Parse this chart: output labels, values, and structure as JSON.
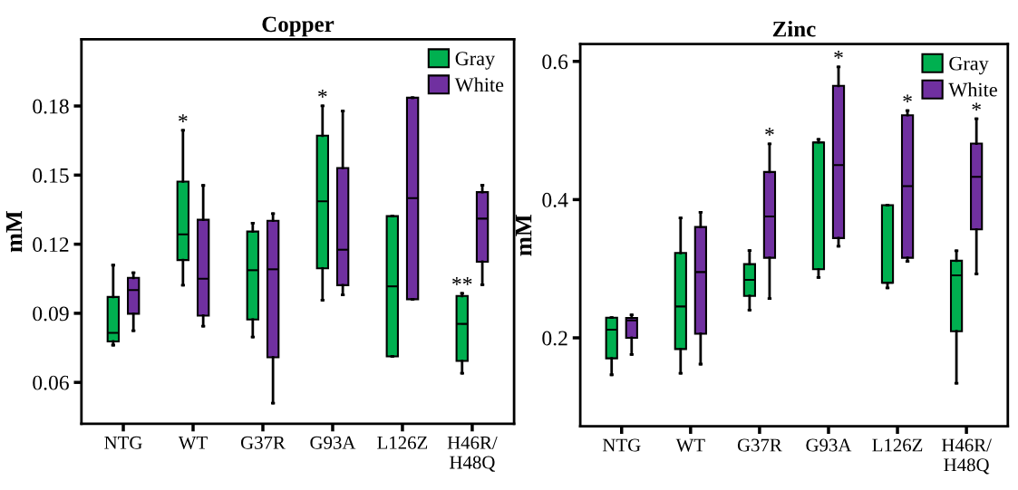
{
  "chart_data": [
    {
      "type": "box",
      "title": "Copper",
      "ylabel": "mM",
      "categories": [
        "NTG",
        "WT",
        "G37R",
        "G93A",
        "L126Z",
        "H46R/\nH48Q"
      ],
      "ylim": [
        0.042,
        0.209
      ],
      "yticks": [
        0.06,
        0.09,
        0.12,
        0.15,
        0.18
      ],
      "legend": "top right",
      "grid": false,
      "series": [
        {
          "name": "Gray",
          "color": "#00b050",
          "value_labels": [
            null,
            "*",
            null,
            "*",
            null,
            "**"
          ],
          "boxes": [
            {
              "low": 0.0762,
              "q1": 0.0778,
              "median": 0.0815,
              "q3": 0.0971,
              "high": 0.1109
            },
            {
              "low": 0.1022,
              "q1": 0.1131,
              "median": 0.1243,
              "q3": 0.1472,
              "high": 0.1694
            },
            {
              "low": 0.0797,
              "q1": 0.0873,
              "median": 0.1087,
              "q3": 0.1255,
              "high": 0.1291
            },
            {
              "low": 0.0957,
              "q1": 0.1095,
              "median": 0.1386,
              "q3": 0.1671,
              "high": 0.1801
            },
            {
              "low": 0.0713,
              "q1": 0.0713,
              "median": 0.1017,
              "q3": 0.1322,
              "high": 0.1322
            },
            {
              "low": 0.064,
              "q1": 0.0693,
              "median": 0.0854,
              "q3": 0.0975,
              "high": 0.0987
            }
          ]
        },
        {
          "name": "White",
          "color": "#7030a0",
          "boxes": [
            {
              "low": 0.0824,
              "q1": 0.0898,
              "median": 0.1001,
              "q3": 0.1054,
              "high": 0.1076
            },
            {
              "low": 0.0844,
              "q1": 0.089,
              "median": 0.105,
              "q3": 0.1306,
              "high": 0.1455
            },
            {
              "low": 0.051,
              "q1": 0.0709,
              "median": 0.1091,
              "q3": 0.1302,
              "high": 0.1333
            },
            {
              "low": 0.098,
              "q1": 0.1022,
              "median": 0.1176,
              "q3": 0.1531,
              "high": 0.1778
            },
            {
              "low": 0.0961,
              "q1": 0.0961,
              "median": 0.14,
              "q3": 0.1836,
              "high": 0.1836
            },
            {
              "low": 0.1024,
              "q1": 0.1124,
              "median": 0.1311,
              "q3": 0.1426,
              "high": 0.1456
            }
          ]
        }
      ]
    },
    {
      "type": "box",
      "title": "Zinc",
      "ylabel": "mM",
      "categories": [
        "NTG",
        "WT",
        "G37R",
        "G93A",
        "L126Z",
        "H46R/\nH48Q"
      ],
      "ylim": [
        0.072,
        0.625
      ],
      "yticks": [
        0.2,
        0.4,
        0.6
      ],
      "legend": "top right",
      "grid": false,
      "series": [
        {
          "name": "Gray",
          "color": "#00b050",
          "boxes": [
            {
              "low": 0.1466,
              "q1": 0.1703,
              "median": 0.2118,
              "q3": 0.2292,
              "high": 0.2292
            },
            {
              "low": 0.1488,
              "q1": 0.1838,
              "median": 0.2454,
              "q3": 0.3228,
              "high": 0.3735
            },
            {
              "low": 0.2401,
              "q1": 0.2607,
              "median": 0.2839,
              "q3": 0.3066,
              "high": 0.3263
            },
            {
              "low": 0.2874,
              "q1": 0.2992,
              "median": 0.4828,
              "q3": 0.4828,
              "high": 0.4872
            },
            {
              "low": 0.2721,
              "q1": 0.2795,
              "median": 0.2795,
              "q3": 0.3919,
              "high": 0.3919
            },
            {
              "low": 0.1344,
              "q1": 0.2096,
              "median": 0.2905,
              "q3": 0.3115,
              "high": 0.3259
            }
          ]
        },
        {
          "name": "White",
          "color": "#7030a0",
          "value_labels": [
            null,
            null,
            "*",
            "*",
            "*",
            "*"
          ],
          "boxes": [
            {
              "low": 0.1759,
              "q1": 0.2,
              "median": 0.2253,
              "q3": 0.2289,
              "high": 0.2332
            },
            {
              "low": 0.162,
              "q1": 0.206,
              "median": 0.2952,
              "q3": 0.3604,
              "high": 0.3818
            },
            {
              "low": 0.2568,
              "q1": 0.3158,
              "median": 0.3757,
              "q3": 0.44,
              "high": 0.4807
            },
            {
              "low": 0.3325,
              "q1": 0.3443,
              "median": 0.45,
              "q3": 0.5646,
              "high": 0.5921
            },
            {
              "low": 0.3106,
              "q1": 0.3158,
              "median": 0.4194,
              "q3": 0.5221,
              "high": 0.5287
            },
            {
              "low": 0.2926,
              "q1": 0.3569,
              "median": 0.4329,
              "q3": 0.481,
              "high": 0.5169
            }
          ]
        }
      ]
    }
  ]
}
